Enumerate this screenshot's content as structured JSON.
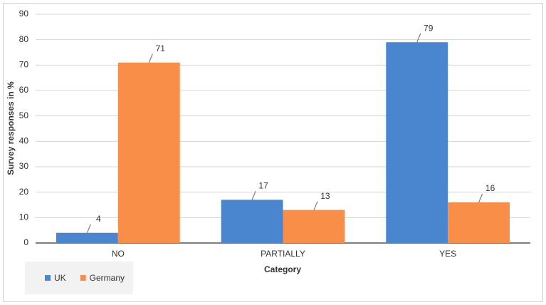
{
  "chart_data": {
    "type": "bar",
    "x_label": "Category",
    "y_label": "Survey responses in %",
    "categories": [
      "NO",
      "PARTIALLY",
      "YES"
    ],
    "series": [
      {
        "name": "UK",
        "color": "#4a86d0",
        "values": [
          4,
          17,
          79
        ]
      },
      {
        "name": "Germany",
        "color": "#f98e48",
        "values": [
          71,
          13,
          16
        ]
      }
    ],
    "ylim": [
      0,
      90
    ],
    "yticks": [
      0,
      10,
      20,
      30,
      40,
      50,
      60,
      70,
      80,
      90
    ],
    "grid": true,
    "legend": "bottom-left",
    "data_labels": true
  }
}
